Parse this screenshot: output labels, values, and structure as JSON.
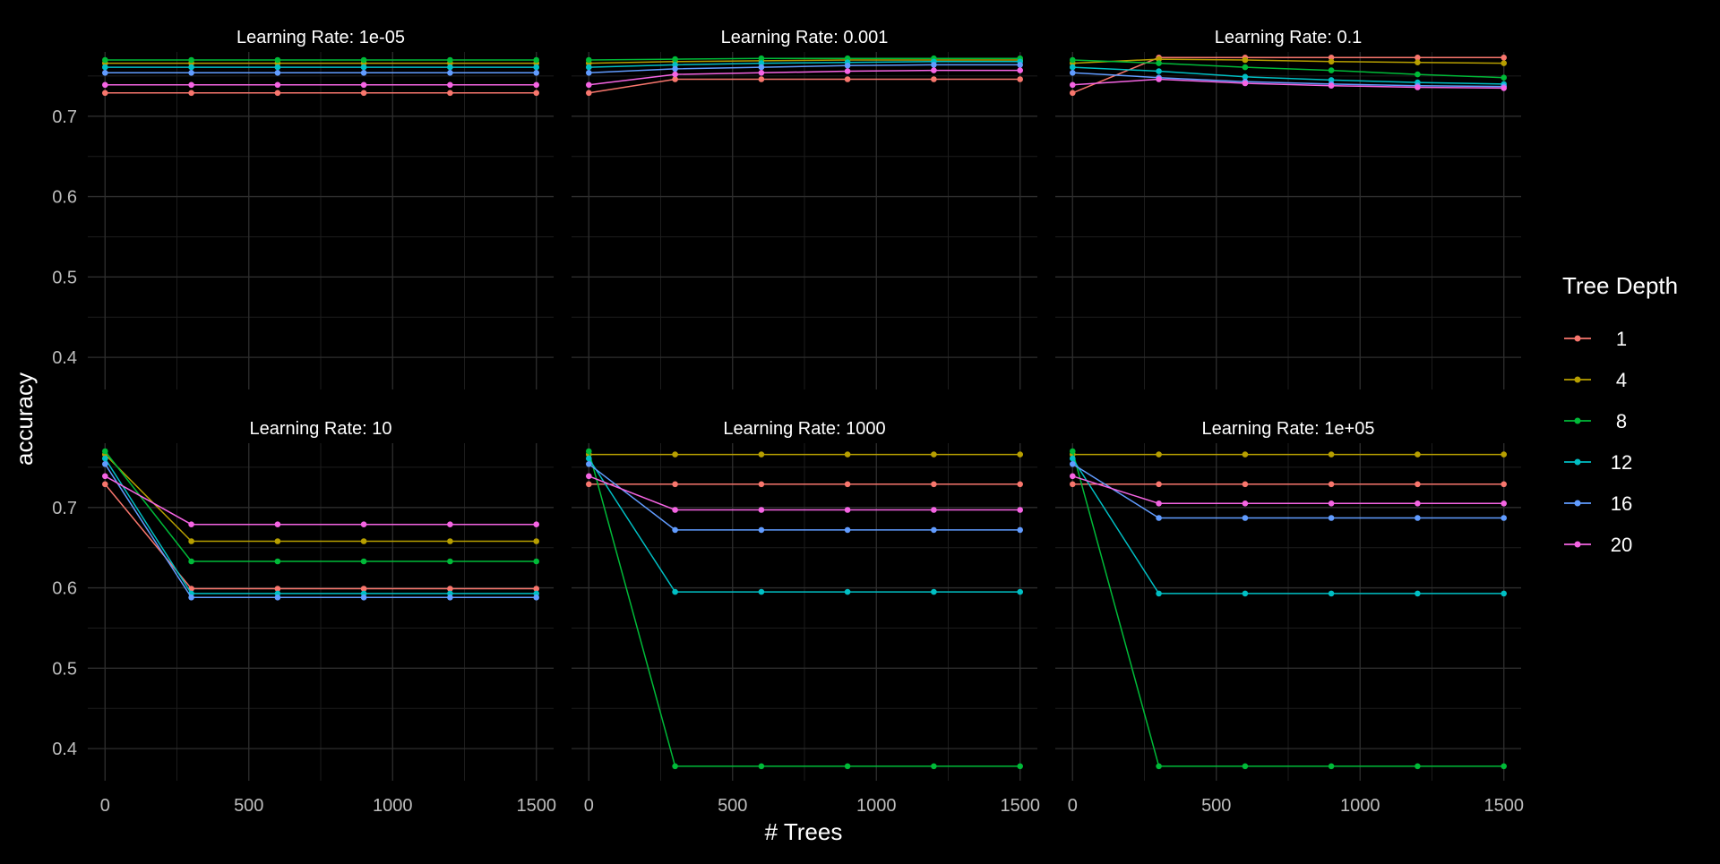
{
  "chart_data": {
    "type": "line",
    "xlabel": "# Trees",
    "ylabel": "accuracy",
    "xlim": [
      -60,
      1560
    ],
    "ylim": [
      0.36,
      0.78
    ],
    "x_ticks": [
      0,
      500,
      1000,
      1500
    ],
    "x_tick_labels": [
      "0",
      "500",
      "1000",
      "1500"
    ],
    "y_ticks": [
      0.4,
      0.5,
      0.6,
      0.7
    ],
    "y_tick_labels": [
      "0.4",
      "0.5",
      "0.6",
      "0.7"
    ],
    "grid": true,
    "legend_title": "Tree Depth",
    "legend_position": "right",
    "series_colors": {
      "1": "#F8766D",
      "4": "#B79F00",
      "8": "#00BA38",
      "12": "#00BFC4",
      "16": "#619CFF",
      "20": "#F564E3"
    },
    "legend_entries": [
      "1",
      "4",
      "8",
      "12",
      "16",
      "20"
    ],
    "x": [
      0,
      300,
      600,
      900,
      1200,
      1500
    ],
    "panels": [
      {
        "title": "Learning Rate: 1e-05",
        "series": [
          {
            "name": "1",
            "values": [
              0.729,
              0.729,
              0.729,
              0.729,
              0.729,
              0.729
            ]
          },
          {
            "name": "4",
            "values": [
              0.766,
              0.766,
              0.766,
              0.766,
              0.766,
              0.766
            ]
          },
          {
            "name": "8",
            "values": [
              0.77,
              0.77,
              0.77,
              0.77,
              0.77,
              0.77
            ]
          },
          {
            "name": "12",
            "values": [
              0.761,
              0.761,
              0.761,
              0.761,
              0.761,
              0.761
            ]
          },
          {
            "name": "16",
            "values": [
              0.754,
              0.754,
              0.754,
              0.754,
              0.754,
              0.754
            ]
          },
          {
            "name": "20",
            "values": [
              0.739,
              0.739,
              0.739,
              0.739,
              0.739,
              0.739
            ]
          }
        ]
      },
      {
        "title": "Learning Rate: 0.001",
        "series": [
          {
            "name": "1",
            "values": [
              0.729,
              0.746,
              0.746,
              0.746,
              0.746,
              0.746
            ]
          },
          {
            "name": "4",
            "values": [
              0.766,
              0.768,
              0.769,
              0.77,
              0.77,
              0.77
            ]
          },
          {
            "name": "8",
            "values": [
              0.77,
              0.771,
              0.772,
              0.772,
              0.772,
              0.772
            ]
          },
          {
            "name": "12",
            "values": [
              0.761,
              0.764,
              0.766,
              0.767,
              0.768,
              0.768
            ]
          },
          {
            "name": "16",
            "values": [
              0.754,
              0.759,
              0.761,
              0.763,
              0.764,
              0.764
            ]
          },
          {
            "name": "20",
            "values": [
              0.739,
              0.752,
              0.754,
              0.756,
              0.757,
              0.757
            ]
          }
        ]
      },
      {
        "title": "Learning Rate: 0.1",
        "series": [
          {
            "name": "1",
            "values": [
              0.729,
              0.773,
              0.773,
              0.773,
              0.773,
              0.773
            ]
          },
          {
            "name": "4",
            "values": [
              0.766,
              0.771,
              0.77,
              0.768,
              0.767,
              0.766
            ]
          },
          {
            "name": "8",
            "values": [
              0.77,
              0.766,
              0.761,
              0.757,
              0.752,
              0.748
            ]
          },
          {
            "name": "12",
            "values": [
              0.761,
              0.756,
              0.749,
              0.745,
              0.742,
              0.74
            ]
          },
          {
            "name": "16",
            "values": [
              0.754,
              0.748,
              0.743,
              0.74,
              0.738,
              0.737
            ]
          },
          {
            "name": "20",
            "values": [
              0.739,
              0.746,
              0.741,
              0.738,
              0.736,
              0.735
            ]
          }
        ]
      },
      {
        "title": "Learning Rate: 10",
        "series": [
          {
            "name": "1",
            "values": [
              0.729,
              0.599,
              0.599,
              0.599,
              0.599,
              0.599
            ]
          },
          {
            "name": "4",
            "values": [
              0.766,
              0.658,
              0.658,
              0.658,
              0.658,
              0.658
            ]
          },
          {
            "name": "8",
            "values": [
              0.77,
              0.633,
              0.633,
              0.633,
              0.633,
              0.633
            ]
          },
          {
            "name": "12",
            "values": [
              0.761,
              0.593,
              0.593,
              0.593,
              0.593,
              0.593
            ]
          },
          {
            "name": "16",
            "values": [
              0.754,
              0.588,
              0.588,
              0.588,
              0.588,
              0.588
            ]
          },
          {
            "name": "20",
            "values": [
              0.739,
              0.679,
              0.679,
              0.679,
              0.679,
              0.679
            ]
          }
        ]
      },
      {
        "title": "Learning Rate: 1000",
        "series": [
          {
            "name": "1",
            "values": [
              0.729,
              0.729,
              0.729,
              0.729,
              0.729,
              0.729
            ]
          },
          {
            "name": "4",
            "values": [
              0.766,
              0.766,
              0.766,
              0.766,
              0.766,
              0.766
            ]
          },
          {
            "name": "8",
            "values": [
              0.77,
              0.378,
              0.378,
              0.378,
              0.378,
              0.378
            ]
          },
          {
            "name": "12",
            "values": [
              0.761,
              0.595,
              0.595,
              0.595,
              0.595,
              0.595
            ]
          },
          {
            "name": "16",
            "values": [
              0.754,
              0.672,
              0.672,
              0.672,
              0.672,
              0.672
            ]
          },
          {
            "name": "20",
            "values": [
              0.739,
              0.697,
              0.697,
              0.697,
              0.697,
              0.697
            ]
          }
        ]
      },
      {
        "title": "Learning Rate: 1e+05",
        "series": [
          {
            "name": "1",
            "values": [
              0.729,
              0.729,
              0.729,
              0.729,
              0.729,
              0.729
            ]
          },
          {
            "name": "4",
            "values": [
              0.766,
              0.766,
              0.766,
              0.766,
              0.766,
              0.766
            ]
          },
          {
            "name": "8",
            "values": [
              0.77,
              0.378,
              0.378,
              0.378,
              0.378,
              0.378
            ]
          },
          {
            "name": "12",
            "values": [
              0.761,
              0.593,
              0.593,
              0.593,
              0.593,
              0.593
            ]
          },
          {
            "name": "16",
            "values": [
              0.754,
              0.687,
              0.687,
              0.687,
              0.687,
              0.687
            ]
          },
          {
            "name": "20",
            "values": [
              0.739,
              0.705,
              0.705,
              0.705,
              0.705,
              0.705
            ]
          }
        ]
      }
    ]
  }
}
